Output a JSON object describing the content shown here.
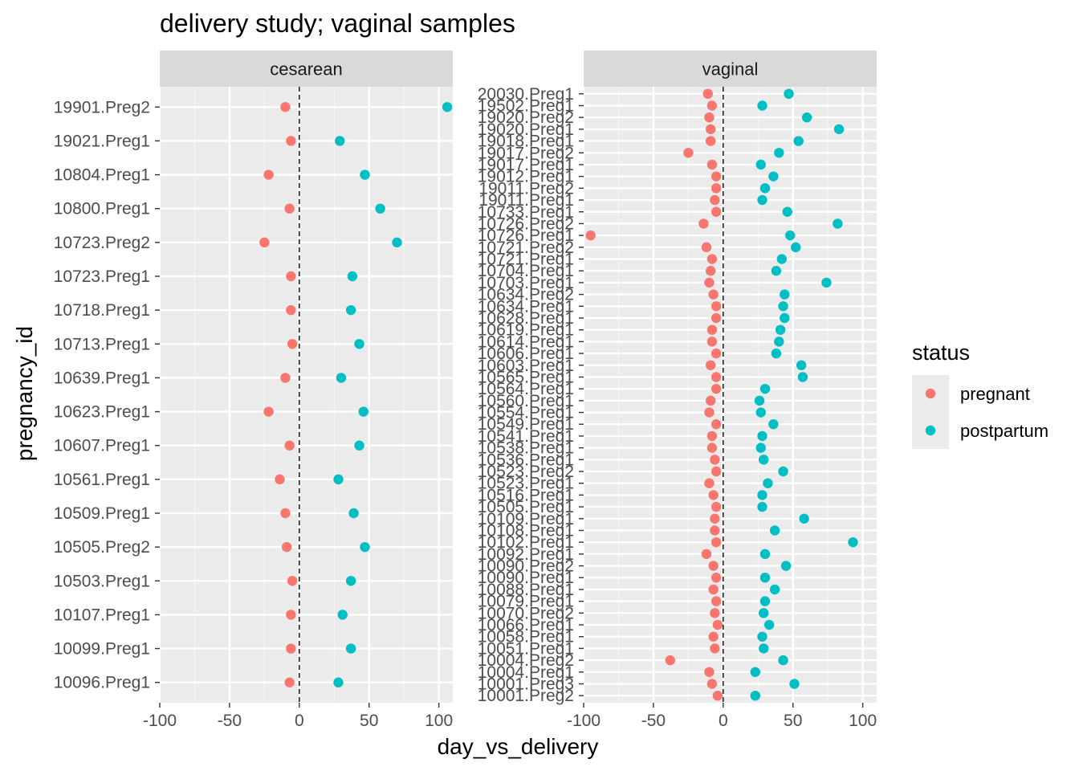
{
  "chart_data": {
    "type": "scatter",
    "title": "delivery study; vaginal samples",
    "xlabel": "day_vs_delivery",
    "ylabel": "pregnancy_id",
    "xlim": [
      -100,
      110
    ],
    "x_ticks": [
      -100,
      -50,
      0,
      50,
      100
    ],
    "x_tick_labels": [
      "-100",
      "-50",
      "0",
      "50",
      "100"
    ],
    "reference_line_x": 0,
    "legend": {
      "title": "status",
      "placement": "right",
      "entries": [
        {
          "label": "pregnant",
          "color": "#F8766D"
        },
        {
          "label": "postpartum",
          "color": "#00BFC4"
        }
      ]
    },
    "panels": [
      {
        "strip": "cesarean",
        "categories": [
          "19901.Preg2",
          "19021.Preg1",
          "10804.Preg1",
          "10800.Preg1",
          "10723.Preg2",
          "10723.Preg1",
          "10718.Preg1",
          "10713.Preg1",
          "10639.Preg1",
          "10623.Preg1",
          "10607.Preg1",
          "10561.Preg1",
          "10509.Preg1",
          "10505.Preg2",
          "10503.Preg1",
          "10107.Preg1",
          "10099.Preg1",
          "10096.Preg1"
        ],
        "pregnant": [
          -10,
          -6,
          -22,
          -7,
          -25,
          -6,
          -6,
          -5,
          -10,
          -22,
          -7,
          -14,
          -10,
          -9,
          -5,
          -6,
          -6,
          -7
        ],
        "postpartum": [
          106,
          29,
          47,
          58,
          70,
          38,
          37,
          43,
          30,
          46,
          43,
          28,
          39,
          47,
          37,
          31,
          37,
          28
        ]
      },
      {
        "strip": "vaginal",
        "categories": [
          "20030.Preg1",
          "19502.Preg1",
          "19020.Preg2",
          "19020.Preg1",
          "19018.Preg1",
          "19017.Preg2",
          "19017.Preg1",
          "19012.Preg1",
          "19011.Preg2",
          "19011.Preg1",
          "10733.Preg1",
          "10726.Preg2",
          "10726.Preg1",
          "10721.Preg2",
          "10721.Preg1",
          "10704.Preg1",
          "10703.Preg1",
          "10634.Preg2",
          "10634.Preg1",
          "10628.Preg1",
          "10619.Preg1",
          "10614.Preg1",
          "10606.Preg1",
          "10603.Preg1",
          "10565.Preg1",
          "10564.Preg1",
          "10560.Preg1",
          "10554.Preg1",
          "10549.Preg1",
          "10541.Preg1",
          "10538.Preg1",
          "10536.Preg1",
          "10523.Preg2",
          "10523.Preg1",
          "10516.Preg1",
          "10505.Preg1",
          "10109.Preg1",
          "10108.Preg1",
          "10102.Preg1",
          "10092.Preg1",
          "10090.Preg2",
          "10090.Preg1",
          "10088.Preg1",
          "10079.Preg1",
          "10070.Preg2",
          "10066.Preg1",
          "10058.Preg1",
          "10051.Preg1",
          "10004.Preg2",
          "10004.Preg1",
          "10001.Preg3",
          "10001.Preg2"
        ],
        "pregnant": [
          -11,
          -8,
          -10,
          -9,
          -9,
          -25,
          -8,
          -5,
          -5,
          -6,
          -5,
          -14,
          -95,
          -12,
          -8,
          -9,
          -10,
          -7,
          -5,
          -5,
          -8,
          -8,
          -5,
          -9,
          -5,
          -5,
          -9,
          -10,
          -5,
          -8,
          -8,
          -6,
          -5,
          -10,
          -7,
          -5,
          -6,
          -6,
          -5,
          -12,
          -7,
          -5,
          -7,
          -5,
          -6,
          -4,
          -7,
          -6,
          -38,
          -10,
          -8,
          -4
        ],
        "postpartum": [
          47,
          28,
          60,
          83,
          54,
          40,
          27,
          36,
          30,
          28,
          46,
          82,
          48,
          52,
          42,
          38,
          74,
          44,
          43,
          44,
          41,
          40,
          38,
          56,
          57,
          30,
          26,
          27,
          36,
          28,
          27,
          29,
          43,
          32,
          28,
          28,
          58,
          37,
          93,
          30,
          45,
          30,
          37,
          30,
          29,
          33,
          28,
          29,
          43,
          23,
          51,
          23
        ]
      }
    ]
  }
}
